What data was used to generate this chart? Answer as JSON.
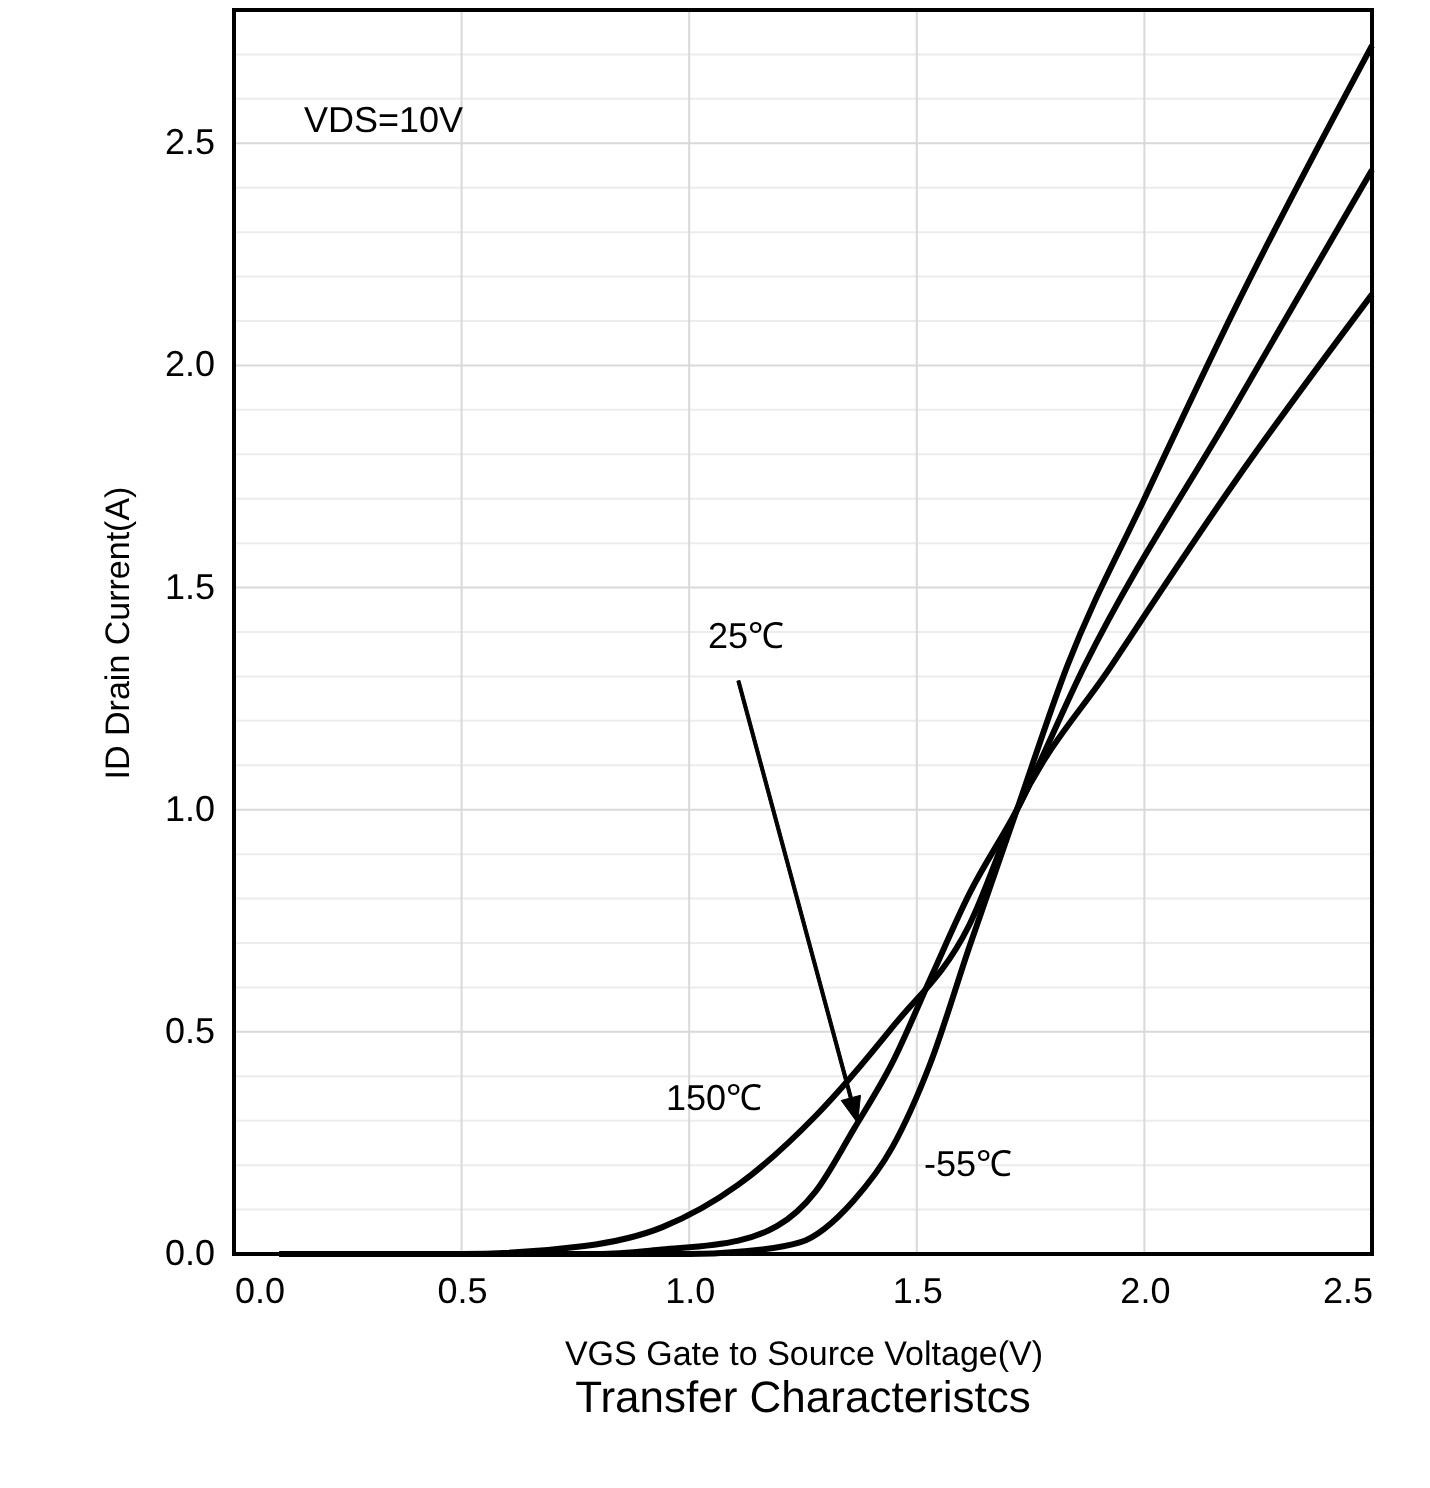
{
  "chart_data": {
    "type": "line",
    "title": "Transfer Characteristcs",
    "xlabel": "VGS Gate to Source Voltage(V)",
    "ylabel": "ID Drain Current(A)",
    "series": [
      {
        "color": "#000000",
        "x": [
          0.1,
          0.5,
          0.77,
          0.94,
          1.108,
          1.277,
          1.446,
          1.615,
          1.72,
          1.928,
          2.2,
          2.5
        ],
        "values": [
          0,
          0,
          0.018,
          0.06,
          0.156,
          0.31,
          0.51,
          0.74,
          1.0,
          1.325,
          1.74,
          2.16
        ]
      },
      {
        "color": "#000000",
        "x": [
          0.1,
          0.8,
          0.94,
          1.108,
          1.277,
          1.361,
          1.446,
          1.53,
          1.615,
          1.72,
          1.869,
          2.2,
          2.5
        ],
        "values": [
          0,
          0,
          0.01,
          0.03,
          0.14,
          0.28,
          0.43,
          0.62,
          0.81,
          1.0,
          1.325,
          1.91,
          2.44
        ]
      },
      {
        "color": "#000000",
        "x": [
          0.1,
          1.0,
          1.108,
          1.243,
          1.361,
          1.446,
          1.53,
          1.615,
          1.72,
          1.831,
          2.0,
          2.2,
          2.5
        ],
        "values": [
          0,
          0,
          0.005,
          0.026,
          0.12,
          0.24,
          0.43,
          0.69,
          1.0,
          1.325,
          1.7,
          2.13,
          2.72
        ]
      }
    ],
    "xlim": [
      0,
      2.5
    ],
    "ylim": [
      0,
      2.8
    ],
    "xticks": [
      {
        "value": 0,
        "label": "0.0"
      },
      0.5,
      {
        "value": 1,
        "label": "1.0"
      },
      1.5,
      {
        "value": 2,
        "label": "2.0"
      },
      2.5
    ],
    "yticks": [
      {
        "value": 0,
        "label": "0.0"
      },
      {
        "value": 0.1,
        "label": null
      },
      {
        "value": 0.2,
        "label": null
      },
      {
        "value": 0.3,
        "label": null
      },
      {
        "value": 0.4,
        "label": null
      },
      0.5,
      {
        "value": 0.6,
        "label": null
      },
      {
        "value": 0.7,
        "label": null
      },
      {
        "value": 0.8,
        "label": null
      },
      {
        "value": 0.9,
        "label": null
      },
      {
        "value": 1,
        "label": "1.0"
      },
      {
        "value": 1.1,
        "label": null
      },
      {
        "value": 1.2,
        "label": null
      },
      {
        "value": 1.3,
        "label": null
      },
      {
        "value": 1.4,
        "label": null
      },
      1.5,
      {
        "value": 1.6,
        "label": null
      },
      {
        "value": 1.7,
        "label": null
      },
      {
        "value": 1.8,
        "label": null
      },
      {
        "value": 1.9,
        "label": null
      },
      {
        "value": 2,
        "label": "2.0"
      },
      {
        "value": 2.1,
        "label": null
      },
      {
        "value": 2.2,
        "label": null
      },
      {
        "value": 2.3,
        "label": null
      },
      {
        "value": 2.4,
        "label": null
      },
      2.5,
      {
        "value": 2.6,
        "label": null
      },
      {
        "value": 2.7,
        "label": null
      }
    ],
    "grid": true,
    "marker": "none",
    "line_style": "solid",
    "annotations": [
      "VDS=10V",
      "25℃",
      "150℃",
      "-55℃"
    ]
  }
}
